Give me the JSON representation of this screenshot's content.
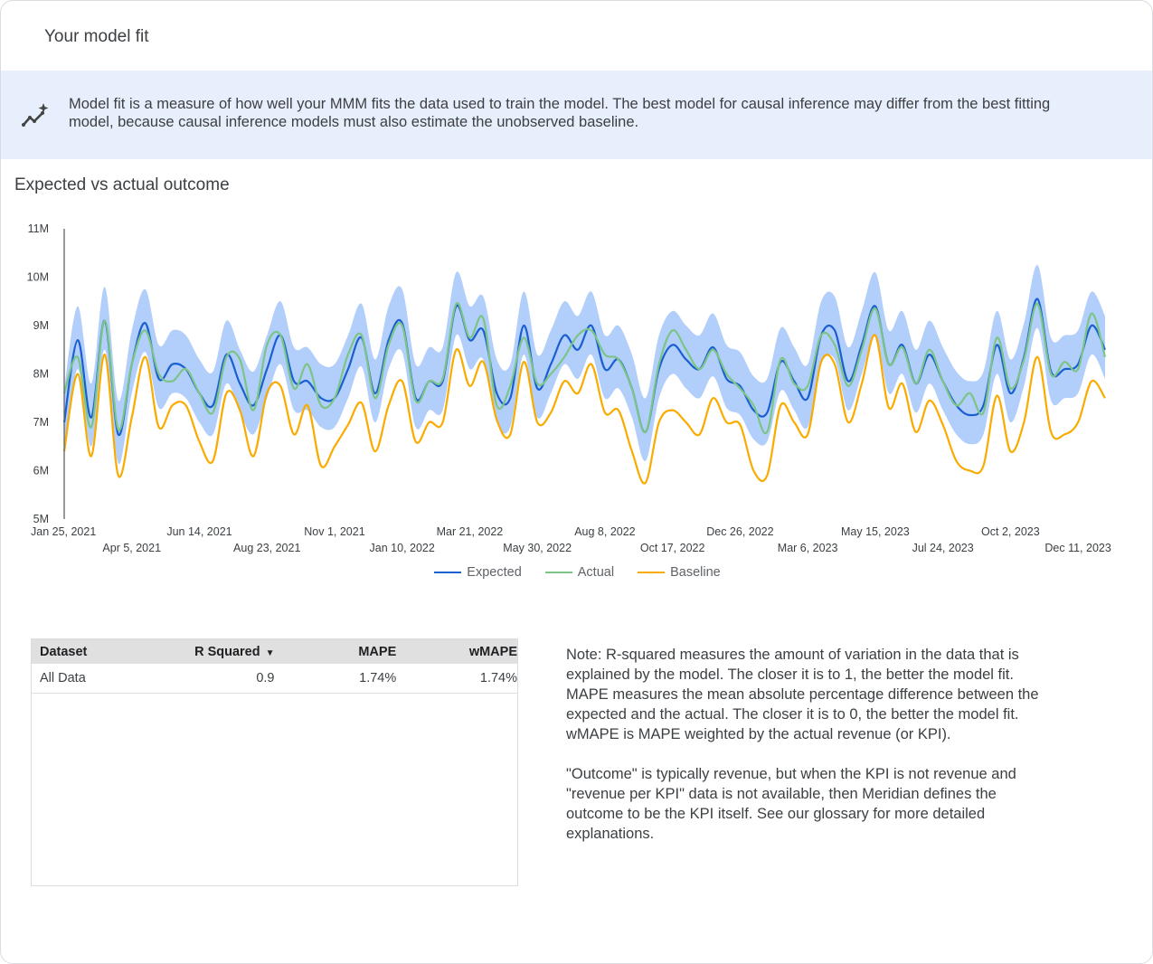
{
  "header": {
    "title": "Your model fit"
  },
  "banner": {
    "icon": "insights-sparkle-icon",
    "text": "Model fit is a measure of how well your MMM fits the data used to train the model. The best model for causal inference may differ from the best fitting model, because causal inference models must also estimate the unobserved baseline."
  },
  "section": {
    "title": "Expected vs actual outcome"
  },
  "chart_data": {
    "type": "line",
    "title": "Expected vs actual outcome",
    "xlabel": "",
    "ylabel": "",
    "ylim": [
      5000000,
      11000000
    ],
    "y_ticks": [
      "5M",
      "6M",
      "7M",
      "8M",
      "9M",
      "10M",
      "11M"
    ],
    "x_ticks": [
      "Jan 25, 2021",
      "Apr 5, 2021",
      "Jun 14, 2021",
      "Aug 23, 2021",
      "Nov 1, 2021",
      "Jan 10, 2022",
      "Mar 21, 2022",
      "May 30, 2022",
      "Aug 8, 2022",
      "Oct 17, 2022",
      "Dec 26, 2022",
      "Mar 6, 2023",
      "May 15, 2023",
      "Jul 24, 2023",
      "Oct 2, 2023",
      "Dec 11, 2023"
    ],
    "grid": false,
    "legend": "bottom",
    "units": "millions",
    "x": [
      "2021-01-25",
      "2021-02-08",
      "2021-02-22",
      "2021-03-08",
      "2021-03-22",
      "2021-04-05",
      "2021-04-19",
      "2021-05-03",
      "2021-05-17",
      "2021-05-31",
      "2021-06-14",
      "2021-06-28",
      "2021-07-12",
      "2021-07-26",
      "2021-08-09",
      "2021-08-23",
      "2021-09-06",
      "2021-09-20",
      "2021-10-04",
      "2021-10-18",
      "2021-11-01",
      "2021-11-15",
      "2021-11-29",
      "2021-12-13",
      "2021-12-27",
      "2022-01-10",
      "2022-01-24",
      "2022-02-07",
      "2022-02-21",
      "2022-03-07",
      "2022-03-21",
      "2022-04-04",
      "2022-04-18",
      "2022-05-02",
      "2022-05-16",
      "2022-05-30",
      "2022-06-13",
      "2022-06-27",
      "2022-07-11",
      "2022-07-25",
      "2022-08-08",
      "2022-08-22",
      "2022-09-05",
      "2022-09-19",
      "2022-10-03",
      "2022-10-17",
      "2022-10-31",
      "2022-11-14",
      "2022-11-28",
      "2022-12-12",
      "2022-12-26",
      "2023-01-09",
      "2023-01-23",
      "2023-02-06",
      "2023-02-20",
      "2023-03-06",
      "2023-03-20",
      "2023-04-03",
      "2023-04-17",
      "2023-05-01",
      "2023-05-15",
      "2023-05-29",
      "2023-06-12",
      "2023-06-26",
      "2023-07-10",
      "2023-07-24",
      "2023-08-07",
      "2023-08-21",
      "2023-09-04",
      "2023-09-18",
      "2023-10-02",
      "2023-10-16",
      "2023-10-30",
      "2023-11-13",
      "2023-11-27",
      "2023-12-11",
      "2023-12-25",
      "2024-01-08"
    ],
    "series": [
      {
        "name": "Expected",
        "color": "#1a5fd0",
        "values": [
          7.0,
          8.7,
          7.1,
          9.1,
          6.75,
          8.2,
          9.05,
          7.9,
          8.2,
          8.1,
          7.6,
          7.35,
          8.4,
          7.8,
          7.35,
          8.1,
          8.8,
          7.85,
          7.85,
          7.5,
          7.5,
          8.1,
          8.75,
          7.6,
          8.7,
          9.05,
          7.5,
          7.85,
          7.85,
          9.4,
          8.7,
          8.9,
          7.6,
          7.5,
          9.0,
          7.7,
          8.2,
          8.8,
          8.5,
          9.0,
          8.1,
          8.3,
          7.7,
          6.8,
          8.1,
          8.6,
          8.3,
          8.1,
          8.55,
          7.9,
          7.75,
          7.25,
          7.2,
          8.25,
          7.85,
          7.5,
          8.8,
          8.9,
          7.85,
          8.6,
          9.4,
          8.2,
          8.6,
          7.8,
          8.4,
          7.85,
          7.35,
          7.15,
          7.35,
          8.6,
          7.6,
          8.35,
          9.55,
          8.05,
          8.1,
          8.2,
          9.0,
          8.5
        ]
      },
      {
        "name": "Actual",
        "color": "#7cc587",
        "values": [
          7.6,
          8.35,
          6.9,
          9.1,
          6.85,
          8.2,
          8.9,
          8.0,
          7.85,
          8.1,
          7.6,
          7.2,
          8.35,
          8.3,
          7.25,
          8.6,
          8.8,
          7.7,
          8.2,
          7.35,
          7.5,
          8.4,
          8.8,
          7.5,
          8.6,
          9.0,
          7.45,
          7.85,
          7.9,
          9.45,
          8.75,
          9.15,
          7.35,
          7.75,
          8.75,
          7.8,
          8.0,
          8.35,
          8.8,
          8.9,
          8.4,
          8.3,
          7.7,
          6.8,
          8.2,
          8.9,
          8.5,
          8.1,
          8.5,
          8.0,
          7.7,
          7.35,
          6.8,
          8.3,
          7.8,
          7.75,
          8.8,
          8.6,
          7.75,
          8.5,
          9.35,
          8.2,
          8.55,
          7.8,
          8.5,
          7.85,
          7.35,
          7.6,
          7.2,
          8.75,
          7.7,
          8.3,
          9.45,
          8.0,
          8.25,
          8.1,
          9.25,
          8.35
        ]
      },
      {
        "name": "Baseline",
        "color": "#f9ab00",
        "values": [
          6.4,
          8.0,
          6.3,
          8.4,
          5.9,
          7.1,
          8.35,
          6.9,
          7.35,
          7.35,
          6.6,
          6.2,
          7.6,
          7.25,
          6.3,
          7.6,
          7.75,
          6.75,
          7.35,
          6.1,
          6.5,
          6.95,
          7.4,
          6.4,
          7.35,
          7.85,
          6.6,
          7.0,
          7.0,
          8.5,
          7.75,
          8.25,
          7.05,
          6.75,
          8.25,
          7.0,
          7.2,
          7.85,
          7.6,
          8.2,
          7.2,
          7.25,
          6.4,
          5.75,
          7.0,
          7.25,
          7.0,
          6.75,
          7.5,
          7.0,
          6.95,
          6.0,
          5.9,
          7.35,
          7.0,
          6.75,
          8.25,
          8.2,
          7.0,
          7.8,
          8.8,
          7.3,
          7.8,
          6.8,
          7.45,
          6.95,
          6.2,
          6.0,
          6.1,
          7.55,
          6.4,
          7.0,
          8.35,
          6.8,
          6.75,
          7.0,
          7.85,
          7.5
        ]
      }
    ],
    "band": {
      "color": "#aecbfa",
      "upper": [
        7.7,
        9.4,
        7.8,
        9.8,
        7.45,
        8.9,
        9.75,
        8.6,
        8.9,
        8.8,
        8.3,
        8.05,
        9.1,
        8.5,
        8.05,
        8.8,
        9.5,
        8.55,
        8.55,
        8.2,
        8.2,
        8.8,
        9.45,
        8.3,
        9.4,
        9.75,
        8.2,
        8.55,
        8.55,
        10.1,
        9.4,
        9.6,
        8.3,
        8.2,
        9.7,
        8.4,
        8.9,
        9.5,
        9.2,
        9.7,
        8.8,
        9.0,
        8.4,
        7.5,
        8.8,
        9.3,
        9.0,
        8.8,
        9.25,
        8.6,
        8.45,
        7.95,
        7.9,
        8.95,
        8.55,
        8.2,
        9.5,
        9.6,
        8.55,
        9.3,
        10.1,
        8.9,
        9.3,
        8.5,
        9.1,
        8.55,
        8.05,
        7.85,
        8.05,
        9.3,
        8.3,
        9.05,
        10.25,
        8.75,
        8.8,
        8.9,
        9.7,
        9.2
      ],
      "lower": [
        6.4,
        8.1,
        6.5,
        8.5,
        6.15,
        7.6,
        8.45,
        7.3,
        7.6,
        7.5,
        7.0,
        6.75,
        7.8,
        7.2,
        6.75,
        7.5,
        8.2,
        7.25,
        7.25,
        6.9,
        6.9,
        7.5,
        8.15,
        7.0,
        8.1,
        8.45,
        6.9,
        7.25,
        7.25,
        8.8,
        8.1,
        8.3,
        7.0,
        6.9,
        8.4,
        7.1,
        7.6,
        8.2,
        7.9,
        8.4,
        7.5,
        7.7,
        7.1,
        6.2,
        7.5,
        8.0,
        7.7,
        7.5,
        7.95,
        7.3,
        7.15,
        6.65,
        6.6,
        7.65,
        7.25,
        6.9,
        8.2,
        8.3,
        7.25,
        8.0,
        8.8,
        7.6,
        8.0,
        7.2,
        7.8,
        7.25,
        6.75,
        6.55,
        6.75,
        8.0,
        7.0,
        7.75,
        8.95,
        7.45,
        7.5,
        7.6,
        8.4,
        7.9
      ]
    }
  },
  "table": {
    "headers": [
      "Dataset",
      "R Squared",
      "MAPE",
      "wMAPE"
    ],
    "sort_icon": "sort-descending-icon",
    "rows": [
      [
        "All Data",
        "0.9",
        "1.74%",
        "1.74%"
      ]
    ]
  },
  "note": {
    "p1": "Note: R-squared measures the amount of variation in the data that is explained by the model. The closer it is to 1, the better the model fit. MAPE measures the mean absolute percentage difference between the expected and the actual. The closer it is to 0, the better the model fit. wMAPE is MAPE weighted by the actual revenue (or KPI).",
    "p2": "\"Outcome\" is typically revenue, but when the KPI is not revenue and \"revenue per KPI\" data is not available, then Meridian defines the outcome to be the KPI itself. See our glossary for more detailed explanations."
  }
}
